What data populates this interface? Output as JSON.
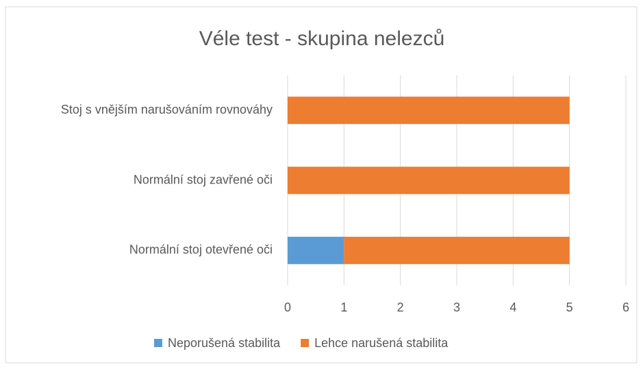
{
  "chart_data": {
    "type": "bar",
    "orientation": "horizontal",
    "stacked": true,
    "title": "Véle test - skupina nelezců",
    "categories": [
      "Normální stoj otevřené oči",
      "Normální stoj zavřené oči",
      "Stoj s vnějším narušováním rovnováhy"
    ],
    "series": [
      {
        "name": "Neporušená stabilita",
        "color": "#5b9bd5",
        "values": [
          1,
          0,
          0
        ]
      },
      {
        "name": "Lehce narušená stabilita",
        "color": "#ed7d31",
        "values": [
          4,
          5,
          5
        ]
      }
    ],
    "xlim": [
      0,
      6
    ],
    "xticks": [
      0,
      1,
      2,
      3,
      4,
      5,
      6
    ],
    "grid": true,
    "legend": "bottom"
  }
}
